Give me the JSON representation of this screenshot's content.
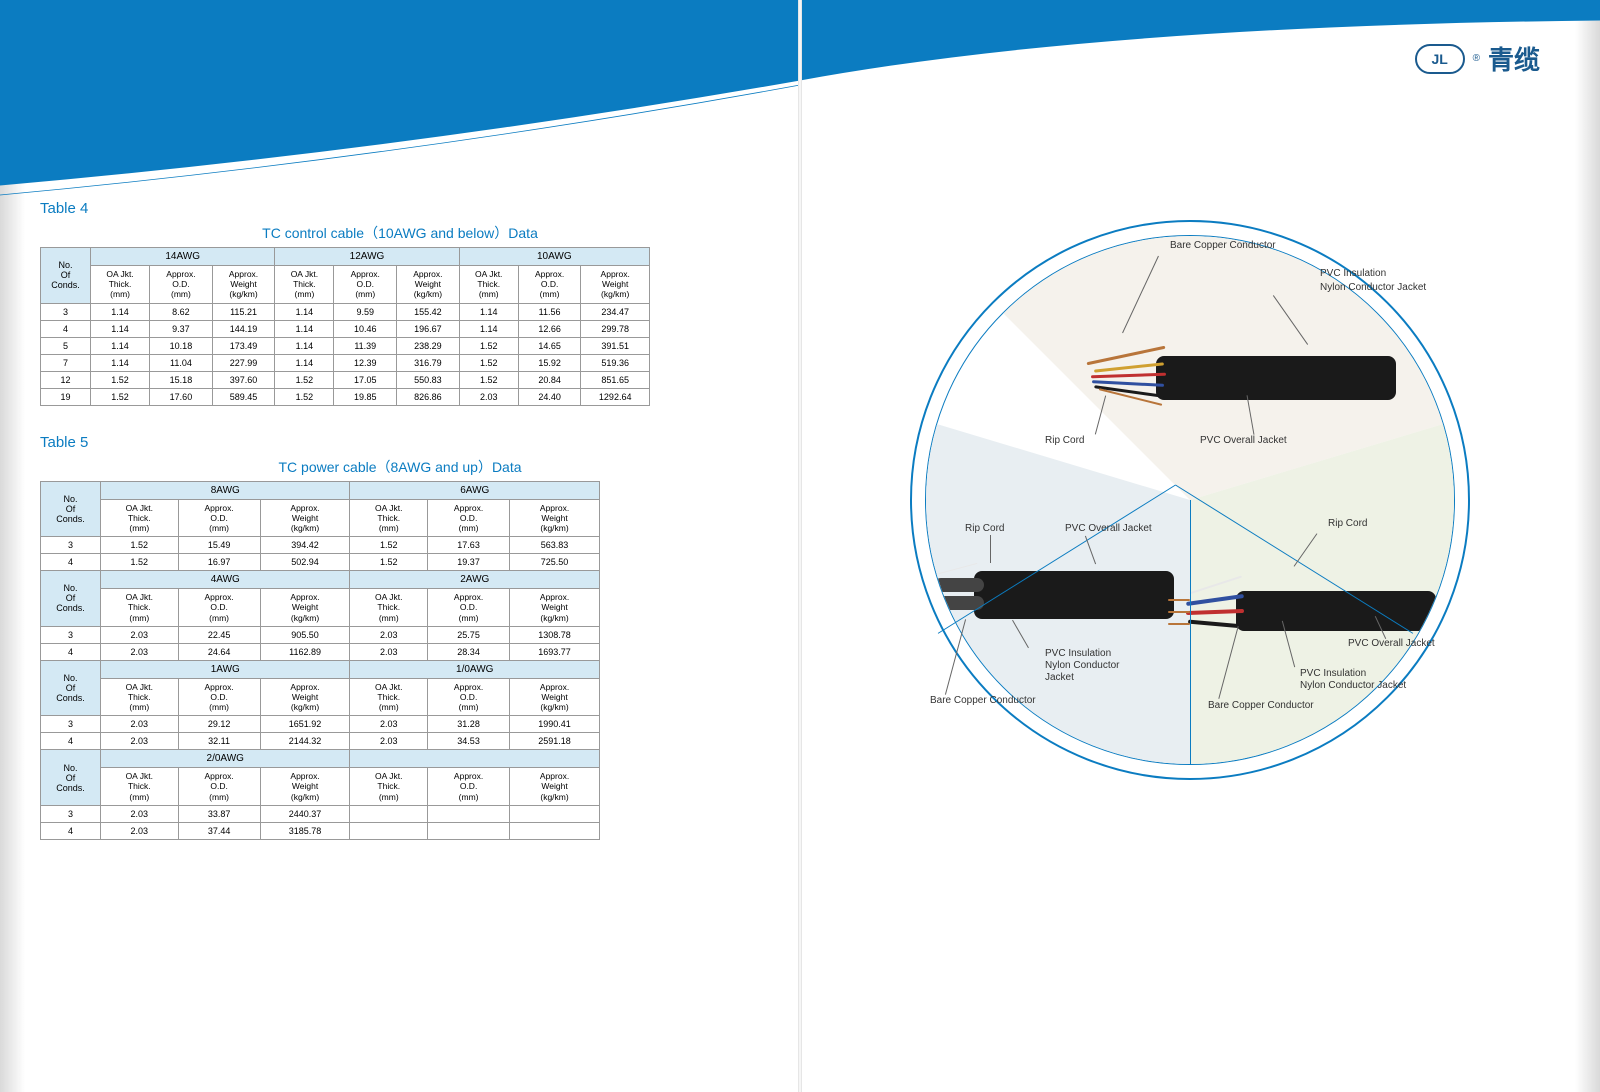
{
  "brand": {
    "logo_text": "青缆",
    "logo_mark": "JL"
  },
  "colors": {
    "accent": "#0b7cc1",
    "header_blue": "#0b7cc1",
    "table_header_bg": "#d4e9f4",
    "sector_top": "#f5f2ec",
    "sector_bl": "#e8eef2",
    "sector_br": "#eef2e5",
    "brand_color": "#1a5a8e"
  },
  "table4": {
    "label": "Table 4",
    "title": "TC control cable（10AWG and below）Data",
    "row_header": "No.\nOf\nConds.",
    "groups": [
      "14AWG",
      "12AWG",
      "10AWG"
    ],
    "col_headers": [
      "OA Jkt.\nThick.\n(mm)",
      "Approx.\nO.D.\n(mm)",
      "Approx.\nWeight\n(kg/km)"
    ],
    "rows": [
      {
        "n": "3",
        "v": [
          "1.14",
          "8.62",
          "115.21",
          "1.14",
          "9.59",
          "155.42",
          "1.14",
          "11.56",
          "234.47"
        ]
      },
      {
        "n": "4",
        "v": [
          "1.14",
          "9.37",
          "144.19",
          "1.14",
          "10.46",
          "196.67",
          "1.14",
          "12.66",
          "299.78"
        ]
      },
      {
        "n": "5",
        "v": [
          "1.14",
          "10.18",
          "173.49",
          "1.14",
          "11.39",
          "238.29",
          "1.52",
          "14.65",
          "391.51"
        ]
      },
      {
        "n": "7",
        "v": [
          "1.14",
          "11.04",
          "227.99",
          "1.14",
          "12.39",
          "316.79",
          "1.52",
          "15.92",
          "519.36"
        ]
      },
      {
        "n": "12",
        "v": [
          "1.52",
          "15.18",
          "397.60",
          "1.52",
          "17.05",
          "550.83",
          "1.52",
          "20.84",
          "851.65"
        ]
      },
      {
        "n": "19",
        "v": [
          "1.52",
          "17.60",
          "589.45",
          "1.52",
          "19.85",
          "826.86",
          "2.03",
          "24.40",
          "1292.64"
        ]
      }
    ]
  },
  "table5": {
    "label": "Table 5",
    "title": "TC power cable（8AWG and up）Data",
    "row_header": "No.\nOf\nConds.",
    "col_headers": [
      "OA Jkt.\nThick.\n(mm)",
      "Approx.\nO.D.\n(mm)",
      "Approx.\nWeight\n(kg/km)"
    ],
    "sections": [
      {
        "groups": [
          "8AWG",
          "6AWG"
        ],
        "rows": [
          {
            "n": "3",
            "v": [
              "1.52",
              "15.49",
              "394.42",
              "1.52",
              "17.63",
              "563.83"
            ]
          },
          {
            "n": "4",
            "v": [
              "1.52",
              "16.97",
              "502.94",
              "1.52",
              "19.37",
              "725.50"
            ]
          }
        ]
      },
      {
        "groups": [
          "4AWG",
          "2AWG"
        ],
        "rows": [
          {
            "n": "3",
            "v": [
              "2.03",
              "22.45",
              "905.50",
              "2.03",
              "25.75",
              "1308.78"
            ]
          },
          {
            "n": "4",
            "v": [
              "2.03",
              "24.64",
              "1162.89",
              "2.03",
              "28.34",
              "1693.77"
            ]
          }
        ]
      },
      {
        "groups": [
          "1AWG",
          "1/0AWG"
        ],
        "rows": [
          {
            "n": "3",
            "v": [
              "2.03",
              "29.12",
              "1651.92",
              "2.03",
              "31.28",
              "1990.41"
            ]
          },
          {
            "n": "4",
            "v": [
              "2.03",
              "32.11",
              "2144.32",
              "2.03",
              "34.53",
              "2591.18"
            ]
          }
        ]
      },
      {
        "groups": [
          "2/0AWG",
          ""
        ],
        "rows": [
          {
            "n": "3",
            "v": [
              "2.03",
              "33.87",
              "2440.37",
              "",
              "",
              ""
            ]
          },
          {
            "n": "4",
            "v": [
              "2.03",
              "37.44",
              "3185.78",
              "",
              "",
              ""
            ]
          }
        ]
      }
    ]
  },
  "diagram": {
    "labels": {
      "bare_copper": "Bare Copper Conductor",
      "pvc_insulation": "PVC Insulation",
      "nylon_jacket": "Nylon Conductor Jacket",
      "rip_cord": "Rip Cord",
      "pvc_overall": "PVC Overall Jacket",
      "pvc_ins_nylon": "PVC Insulation\nNylon Conductor\nJacket"
    },
    "wire_colors": {
      "copper": "#b8753a",
      "red": "#c03030",
      "blue": "#3050a0",
      "yellow": "#d0a030",
      "white": "#e8e8e8",
      "black": "#1a1a1a"
    }
  }
}
